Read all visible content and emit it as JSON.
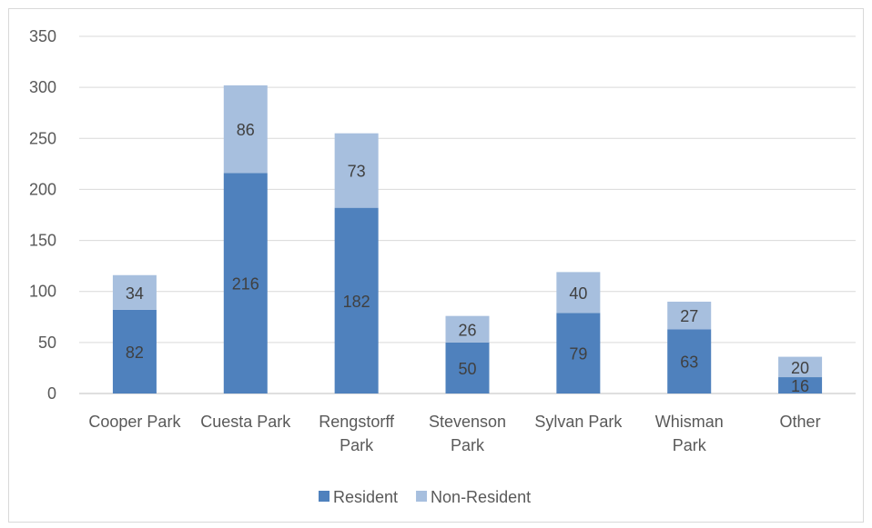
{
  "chart_data": {
    "type": "bar",
    "stacked": true,
    "categories": [
      [
        "Cooper Park"
      ],
      [
        "Cuesta Park"
      ],
      [
        "Rengstorff",
        "Park"
      ],
      [
        "Stevenson",
        "Park"
      ],
      [
        "Sylvan Park"
      ],
      [
        "Whisman",
        "Park"
      ],
      [
        "Other"
      ]
    ],
    "series": [
      {
        "name": "Resident",
        "color": "#4f81bd",
        "values": [
          82,
          216,
          182,
          50,
          79,
          63,
          16
        ]
      },
      {
        "name": "Non-Resident",
        "color": "#a7bfde",
        "values": [
          34,
          86,
          73,
          26,
          40,
          27,
          20
        ]
      }
    ],
    "ylim": [
      0,
      350
    ],
    "yticks": [
      0,
      50,
      100,
      150,
      200,
      250,
      300,
      350
    ],
    "grid": true,
    "legend_position": "bottom",
    "data_labels": true
  }
}
